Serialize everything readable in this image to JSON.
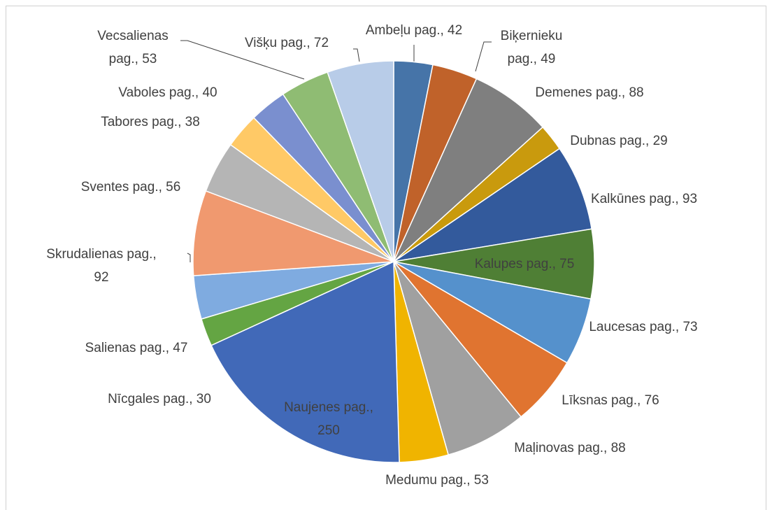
{
  "chart_data": {
    "type": "pie",
    "categories": [
      "Ambeļu pag.",
      "Biķernieku pag.",
      "Demenes pag.",
      "Dubnas pag.",
      "Kalkūnes pag.",
      "Kalupes pag.",
      "Laucesas pag.",
      "Līksnas pag.",
      "Maļinovas pag.",
      "Medumu pag.",
      "Naujenes pag.",
      "Nīcgales pag.",
      "Salienas pag.",
      "Skrudalienas pag.",
      "Sventes pag.",
      "Tabores pag.",
      "Vaboles pag.",
      "Vecsalienas pag.",
      "Višķu pag."
    ],
    "values": [
      42,
      49,
      88,
      29,
      93,
      75,
      73,
      76,
      88,
      53,
      250,
      30,
      47,
      92,
      56,
      38,
      40,
      53,
      72
    ],
    "value_labels": [
      "Ambeļu pag., 42",
      "Biķernieku pag., 49",
      "Demenes pag., 88",
      "Dubnas pag., 29",
      "Kalkūnes pag., 93",
      "Kalupes pag., 75",
      "Laucesas pag., 73",
      "Līksnas pag., 76",
      "Maļinovas pag., 88",
      "Medumu pag., 53",
      "Naujenes pag., 250",
      "Nīcgales pag., 30",
      "Salienas pag., 47",
      "Skrudalienas pag., 92",
      "Sventes pag., 56",
      "Tabores pag., 38",
      "Vaboles pag., 40",
      "Vecsalienas pag., 53",
      "Višķu pag., 72"
    ],
    "colors": [
      "#4674a8",
      "#c0622a",
      "#7f7f7f",
      "#c99a0d",
      "#335a9c",
      "#4f7f35",
      "#5591cc",
      "#e07430",
      "#a0a0a0",
      "#f0b400",
      "#4169b8",
      "#64a543",
      "#7fabe0",
      "#f0996f",
      "#b5b5b5",
      "#ffc966",
      "#7a8fcf",
      "#8fbc73",
      "#b8cce8"
    ]
  }
}
